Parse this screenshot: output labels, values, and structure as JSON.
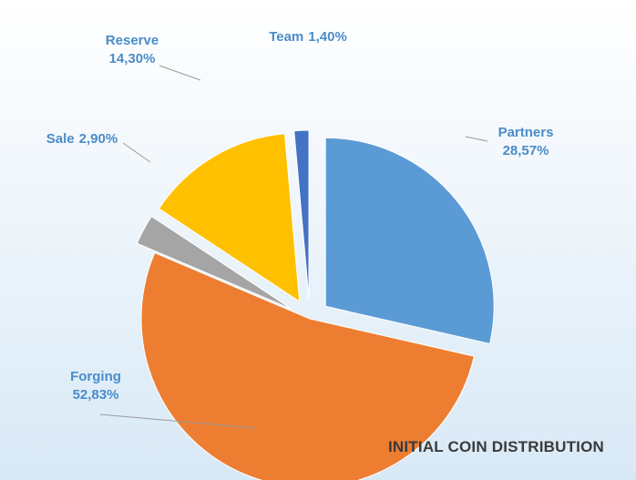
{
  "chart_data": {
    "type": "pie",
    "title": "INITIAL COIN DISTRIBUTION",
    "legend": "none",
    "slices": [
      {
        "name": "Partners",
        "value": 28.57,
        "label": "28,57%",
        "color": "#5b9bd5",
        "exploded": true
      },
      {
        "name": "Forging",
        "value": 52.83,
        "label": "52,83%",
        "color": "#ed7d31",
        "exploded": false
      },
      {
        "name": "Sale",
        "value": 2.9,
        "label": "2,90%",
        "color": "#a5a5a5",
        "exploded": true
      },
      {
        "name": "Reserve",
        "value": 14.3,
        "label": "14,30%",
        "color": "#ffc000",
        "exploded": true
      },
      {
        "name": "Team",
        "value": 1.4,
        "label": "1,40%",
        "color": "#4472c4",
        "exploded": true
      }
    ]
  }
}
